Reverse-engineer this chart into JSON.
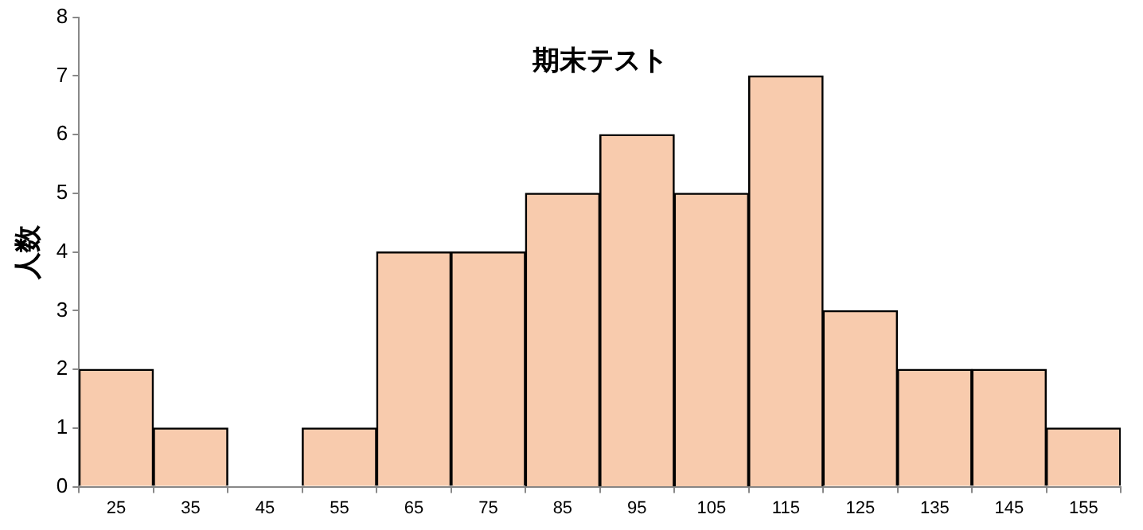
{
  "chart_data": {
    "type": "bar",
    "title": "期末テスト",
    "ylabel": "人数",
    "categories": [
      "25",
      "35",
      "45",
      "55",
      "65",
      "75",
      "85",
      "95",
      "105",
      "115",
      "125",
      "135",
      "145",
      "155"
    ],
    "values": [
      2,
      1,
      0,
      1,
      4,
      4,
      5,
      6,
      5,
      7,
      3,
      2,
      2,
      1
    ],
    "color": "#f8cbad",
    "ylim": [
      0,
      8
    ],
    "yticks": [
      0,
      1,
      2,
      3,
      4,
      5,
      6,
      7,
      8
    ],
    "grid": false,
    "legend": false
  }
}
